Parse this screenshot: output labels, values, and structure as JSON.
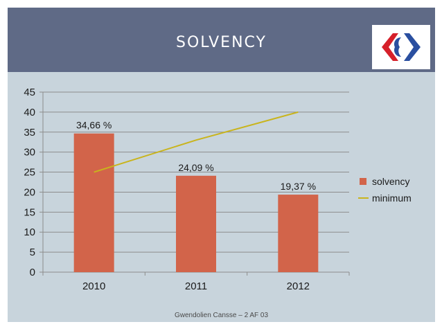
{
  "header": {
    "title": "SOLVENCY",
    "logo_icon": "carrefour-logo"
  },
  "footer": {
    "text": "Gwendolien Cansse – 2 AF 03"
  },
  "colors": {
    "header_bg": "#5f6a86",
    "bar": "#d2644a",
    "line": "#c9b41c",
    "panel_bg": "#c8d4dc"
  },
  "chart_data": {
    "type": "bar",
    "title": "",
    "categories": [
      "2010",
      "2011",
      "2012"
    ],
    "series": [
      {
        "name": "solvency",
        "kind": "bar",
        "values": [
          34.66,
          24.09,
          19.37
        ],
        "labels": [
          "34,66 %",
          "24,09 %",
          "19,37 %"
        ]
      },
      {
        "name": "minimum",
        "kind": "line",
        "values": [
          25,
          33,
          40
        ]
      }
    ],
    "yticks": [
      "0",
      "5",
      "10",
      "15",
      "20",
      "25",
      "30",
      "35",
      "40",
      "45"
    ],
    "ylim": [
      0,
      45
    ],
    "xlabel": "",
    "ylabel": "",
    "grid": true,
    "legend": "right"
  }
}
